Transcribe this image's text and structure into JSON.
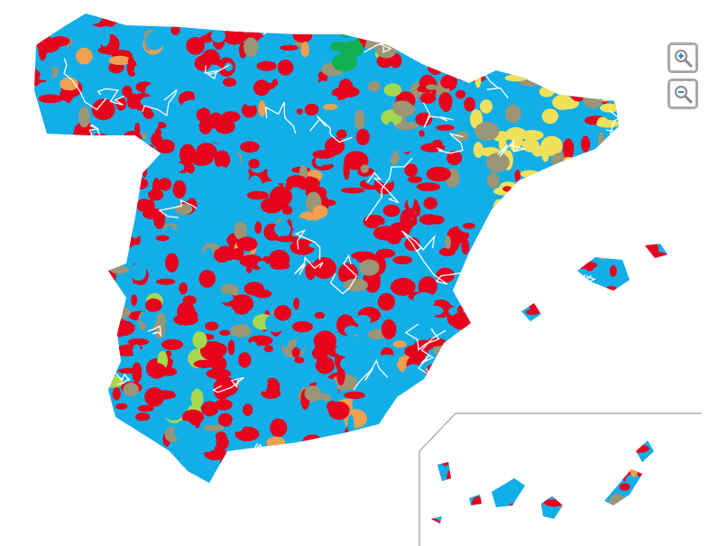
{
  "map": {
    "colors": {
      "blue": "#12aee8",
      "red": "#e8001c",
      "olive": "#9c9575",
      "yellow": "#f0e05a",
      "green": "#10b050",
      "lightgreen": "#a6d84e",
      "orange": "#f0a050",
      "border": "#ffffff",
      "inset_line": "#b0b0b0"
    }
  },
  "controls": {
    "zoom_in_icon": "magnifier-plus-icon",
    "zoom_out_icon": "magnifier-minus-icon"
  }
}
